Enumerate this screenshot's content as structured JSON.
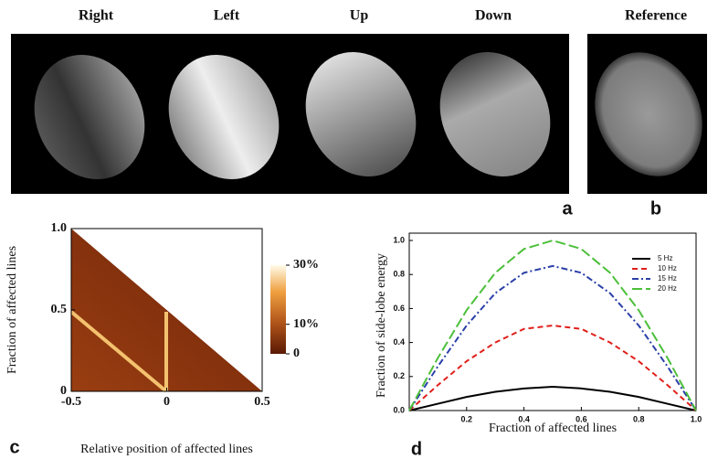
{
  "figure_a": {
    "labels": [
      "Right",
      "Left",
      "Up",
      "Down"
    ],
    "letter": "a"
  },
  "figure_b": {
    "label": "Reference",
    "letter": "b"
  },
  "chart_data": [
    {
      "type": "heatmap",
      "panel_label": "c",
      "xlabel": "Relative position of affected lines",
      "ylabel": "Fraction of affected lines",
      "xlim": [
        -0.5,
        0.5
      ],
      "ylim": [
        0,
        1
      ],
      "xticks": [
        -0.5,
        0,
        0.5
      ],
      "yticks": [
        0,
        0.5,
        {
          "value": 1,
          "label": "1.0"
        }
      ],
      "clim": [
        0,
        30
      ],
      "cticks": [
        0,
        {
          "value": 10,
          "label": "10%"
        },
        {
          "value": 30,
          "label": "30%"
        }
      ]
    },
    {
      "type": "line",
      "panel_label": "d",
      "xlabel": "Fraction of affected lines",
      "ylabel": "Fraction of side-lobe energy",
      "xlim": [
        0,
        1
      ],
      "ylim": [
        0,
        1
      ],
      "xticks": [
        0.2,
        0.4,
        0.6,
        0.8,
        {
          "value": 1,
          "label": "1.0"
        }
      ],
      "yticks": [
        {
          "value": 0,
          "label": "0.0"
        },
        0.2,
        0.4,
        0.6,
        0.8,
        {
          "value": 1,
          "label": "1.0"
        }
      ],
      "legend": "upper right",
      "x": [
        0,
        0.1,
        0.2,
        0.3,
        0.4,
        0.5,
        0.6,
        0.7,
        0.8,
        0.9,
        1
      ],
      "series": [
        {
          "name": "5 Hz",
          "color": "#000000",
          "dash": "solid",
          "values": [
            0,
            0.04,
            0.08,
            0.11,
            0.13,
            0.14,
            0.13,
            0.11,
            0.08,
            0.04,
            0
          ]
        },
        {
          "name": "10 Hz",
          "color": "#e0201b",
          "dash": "dashed",
          "values": [
            0,
            0.15,
            0.29,
            0.4,
            0.48,
            0.5,
            0.48,
            0.4,
            0.29,
            0.15,
            0
          ]
        },
        {
          "name": "15 Hz",
          "color": "#2b3fa8",
          "dash": "dashdot",
          "values": [
            0,
            0.26,
            0.5,
            0.69,
            0.81,
            0.85,
            0.81,
            0.69,
            0.5,
            0.26,
            0
          ]
        },
        {
          "name": "20 Hz",
          "color": "#4cbf3a",
          "dash": "longdash",
          "values": [
            0,
            0.31,
            0.59,
            0.81,
            0.95,
            1.0,
            0.95,
            0.81,
            0.59,
            0.31,
            0
          ]
        }
      ]
    }
  ]
}
